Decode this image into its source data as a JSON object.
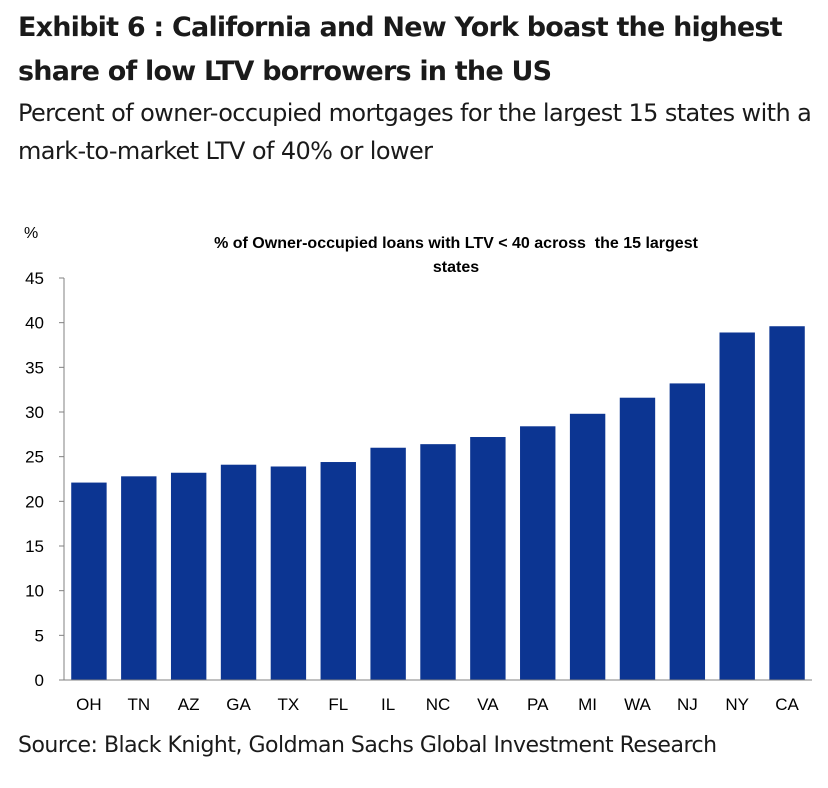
{
  "header": {
    "title": "Exhibit 6 : California and New York boast the highest share of low LTV borrowers in the US",
    "subtitle": "Percent of owner-occupied mortgages for the largest 15 states with a mark-to-market LTV of 40% or lower"
  },
  "footer": {
    "source": "Source: Black Knight, Goldman Sachs Global Investment Research"
  },
  "colors": {
    "bar": "#0c3592"
  },
  "chart_data": {
    "type": "bar",
    "title": "% of Owner-occupied loans with LTV < 40 across the 15 largest states",
    "title_lines": [
      "% of Owner-occupied loans with LTV < 40 across  the 15 largest",
      "states"
    ],
    "xlabel": "",
    "ylabel": "%",
    "ylim": [
      0,
      45
    ],
    "yticks": [
      0,
      5,
      10,
      15,
      20,
      25,
      30,
      35,
      40,
      45
    ],
    "grid": false,
    "categories": [
      "OH",
      "TN",
      "AZ",
      "GA",
      "TX",
      "FL",
      "IL",
      "NC",
      "VA",
      "PA",
      "MI",
      "WA",
      "NJ",
      "NY",
      "CA"
    ],
    "values": [
      22.1,
      22.8,
      23.2,
      24.1,
      23.9,
      24.4,
      26.0,
      26.4,
      27.2,
      28.4,
      29.8,
      31.6,
      33.2,
      38.9,
      39.6
    ]
  }
}
